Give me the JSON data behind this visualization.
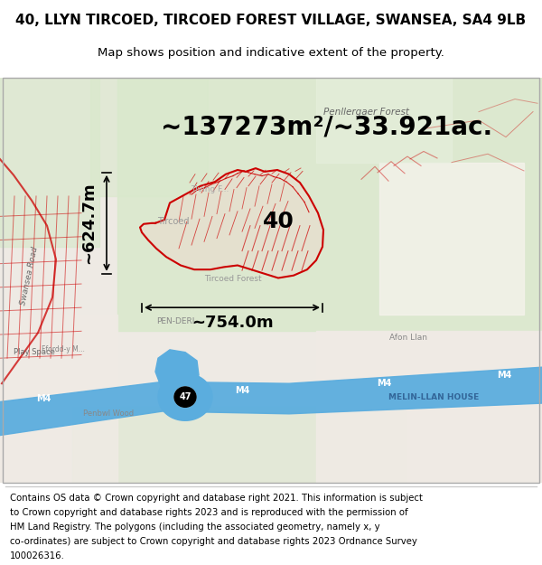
{
  "title_line1": "40, LLYN TIRCOED, TIRCOED FOREST VILLAGE, SWANSEA, SA4 9LB",
  "title_line2": "Map shows position and indicative extent of the property.",
  "area_text": "~137273m²/~33.921ac.",
  "height_text": "~624.7m",
  "width_text": "~754.0m",
  "label_40": "40",
  "copyright_lines": [
    "Contains OS data © Crown copyright and database right 2021. This information is subject",
    "to Crown copyright and database rights 2023 and is reproduced with the permission of",
    "HM Land Registry. The polygons (including the associated geometry, namely x, y",
    "co-ordinates) are subject to Crown copyright and database rights 2023 Ordnance Survey",
    "100026316."
  ],
  "title_fontsize": 11,
  "subtitle_fontsize": 9.5,
  "area_fontsize": 20,
  "measure_fontsize": 13,
  "label_fontsize": 18,
  "copyright_fontsize": 7.3,
  "bg_color": "#ffffff",
  "map_bg": "#eeeae4",
  "green_area": "#d9e8cc",
  "red_color": "#cc0000",
  "blue_color": "#5badde",
  "figsize": [
    6.0,
    6.25
  ],
  "dpi": 100
}
